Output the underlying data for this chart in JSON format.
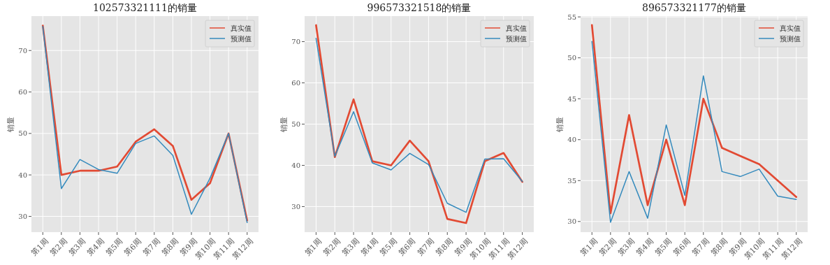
{
  "chart_data": [
    {
      "type": "line",
      "title": "102573321111的销量",
      "ylabel": "销量",
      "categories": [
        "第1周",
        "第2周",
        "第3周",
        "第4周",
        "第5周",
        "第6周",
        "第7周",
        "第8周",
        "第9周",
        "第10周",
        "第11周",
        "第12周"
      ],
      "ylim": [
        26.2,
        78.3
      ],
      "yticks": [
        30,
        40,
        50,
        60,
        70
      ],
      "grid": true,
      "legend": "top right",
      "series": [
        {
          "name": "真实值",
          "color": "#e24a33",
          "values": [
            76,
            40,
            41,
            41,
            42,
            48,
            51,
            47,
            34,
            38,
            50,
            29
          ]
        },
        {
          "name": "预测值",
          "color": "#348abd",
          "values": [
            75.8,
            36.7,
            43.7,
            41.3,
            40.4,
            47.6,
            49.4,
            44.7,
            30.5,
            39.2,
            50,
            28.5
          ]
        }
      ]
    },
    {
      "type": "line",
      "title": "996573321518的销量",
      "ylabel": "销量",
      "categories": [
        "第1周",
        "第2周",
        "第3周",
        "第4周",
        "第5周",
        "第6周",
        "第7周",
        "第8周",
        "第9周",
        "第10周",
        "第11周",
        "第12周"
      ],
      "ylim": [
        23.8,
        76.2
      ],
      "yticks": [
        30,
        40,
        50,
        60,
        70
      ],
      "grid": true,
      "legend": "top right",
      "series": [
        {
          "name": "真实值",
          "color": "#e24a33",
          "values": [
            74,
            42,
            56,
            41,
            40,
            46,
            41,
            27,
            26,
            41,
            43,
            36
          ]
        },
        {
          "name": "预测值",
          "color": "#348abd",
          "values": [
            70.8,
            42.2,
            53,
            40.6,
            38.9,
            42.9,
            40.2,
            30.8,
            28.6,
            41.5,
            41.6,
            36.1
          ]
        }
      ]
    },
    {
      "type": "line",
      "title": "896573321177的销量",
      "ylabel": "销量",
      "categories": [
        "第1周",
        "第2周",
        "第3周",
        "第4周",
        "第5周",
        "第6周",
        "第7周",
        "第8周",
        "第9周",
        "第10周",
        "第11周",
        "第12周"
      ],
      "ylim": [
        28.7,
        55.1
      ],
      "yticks": [
        30,
        35,
        40,
        45,
        50,
        55
      ],
      "grid": true,
      "legend": "top right",
      "series": [
        {
          "name": "真实值",
          "color": "#e24a33",
          "values": [
            54,
            31,
            43,
            32,
            40,
            32,
            45,
            39,
            38,
            37,
            35,
            33
          ]
        },
        {
          "name": "预测值",
          "color": "#348abd",
          "values": [
            52,
            29.9,
            36.1,
            30.4,
            41.8,
            33.2,
            47.8,
            36.1,
            35.5,
            36.4,
            33.1,
            32.7
          ]
        }
      ]
    }
  ]
}
